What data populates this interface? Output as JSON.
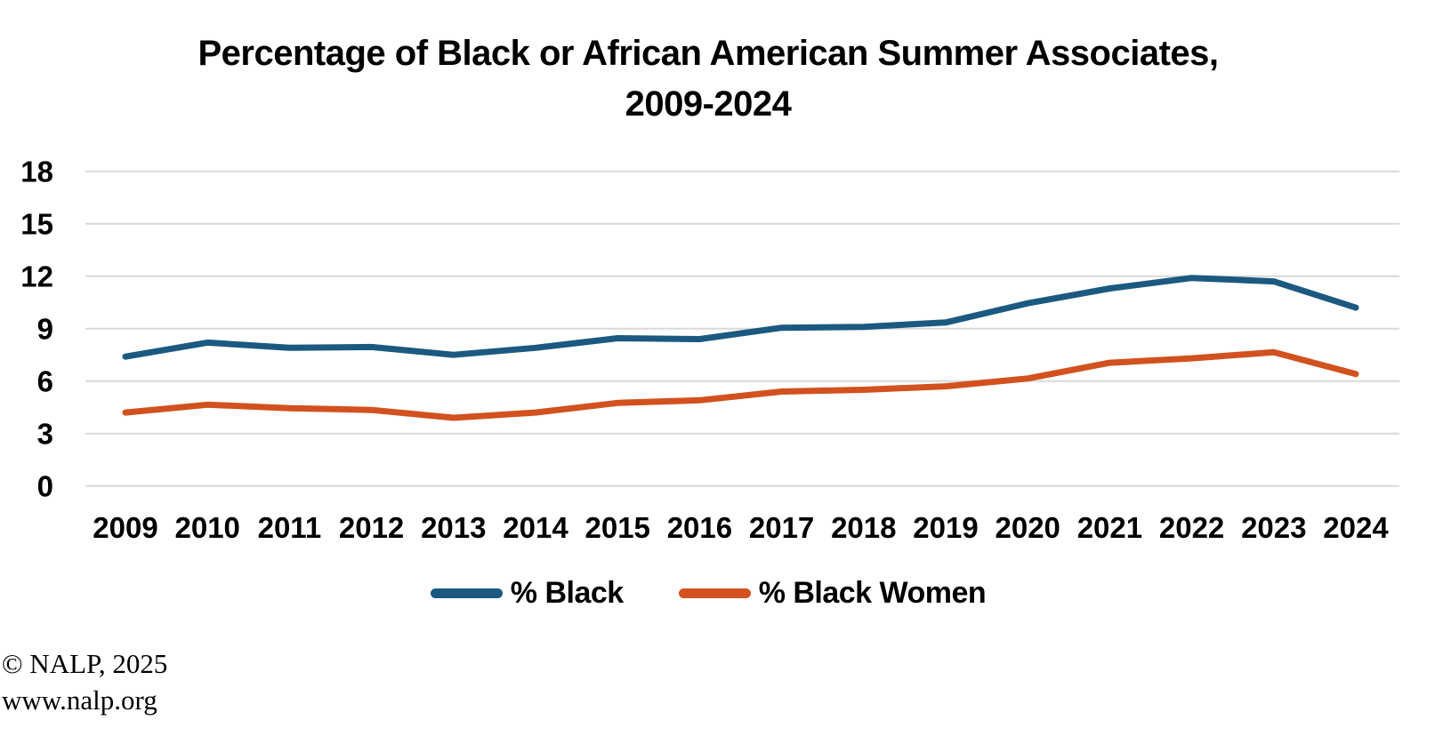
{
  "title": {
    "line1": "Percentage of Black or African American Summer Associates,",
    "line2": "2009-2024"
  },
  "legend": [
    {
      "label": "% Black",
      "color": "#1B5980"
    },
    {
      "label": "% Black Women",
      "color": "#D2511E"
    }
  ],
  "footer": {
    "copyright": "© NALP, 2025",
    "website": "www.nalp.org"
  },
  "chart_data": {
    "type": "line",
    "title": "Percentage of Black or African American Summer Associates, 2009-2024",
    "categories": [
      "2009",
      "2010",
      "2011",
      "2012",
      "2013",
      "2014",
      "2015",
      "2016",
      "2017",
      "2018",
      "2019",
      "2020",
      "2021",
      "2022",
      "2023",
      "2024"
    ],
    "series": [
      {
        "name": "% Black",
        "color": "#1B5980",
        "values": [
          7.4,
          8.2,
          7.9,
          7.95,
          7.5,
          7.9,
          8.45,
          8.4,
          9.05,
          9.1,
          9.35,
          10.45,
          11.3,
          11.9,
          11.7,
          10.2
        ]
      },
      {
        "name": "% Black Women",
        "color": "#D2511E",
        "values": [
          4.2,
          4.65,
          4.45,
          4.35,
          3.9,
          4.2,
          4.75,
          4.9,
          5.4,
          5.5,
          5.7,
          6.15,
          7.05,
          7.3,
          7.65,
          6.4
        ]
      }
    ],
    "xlabel": "",
    "ylabel": "",
    "ylim": [
      0,
      18
    ],
    "yticks": [
      0,
      3,
      6,
      9,
      12,
      15,
      18
    ],
    "grid": "horizontal",
    "gridline_color": "#D9D9D9",
    "legend_position": "bottom",
    "line_width": 7
  }
}
